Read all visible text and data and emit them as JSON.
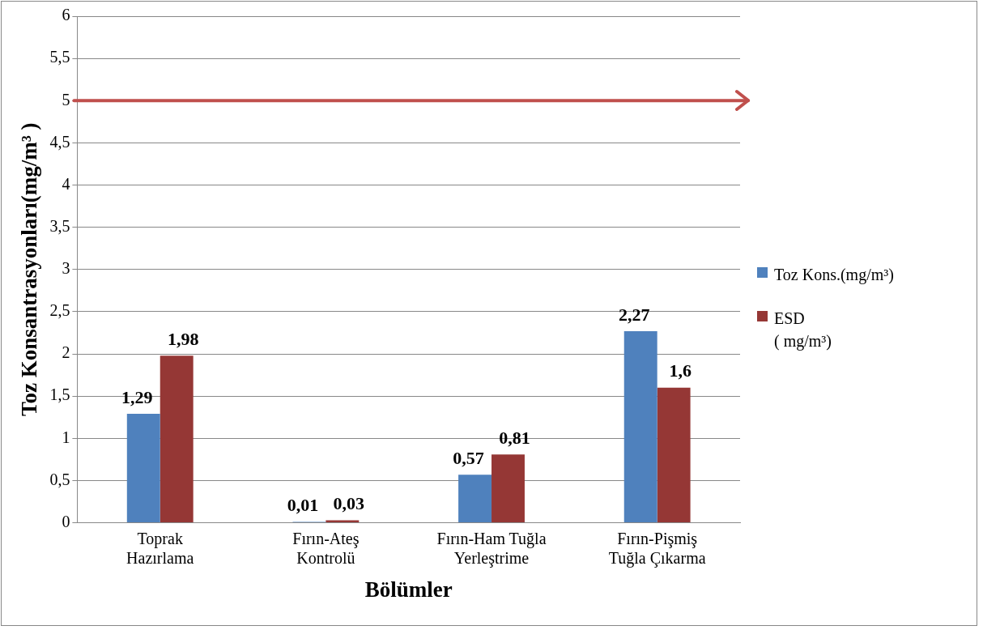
{
  "chart_data": {
    "type": "bar",
    "xlabel": "Bölümler",
    "ylabel": "Toz Konsantrasyonları(mg/m³ )",
    "categories": [
      "Toprak\nHazırlama",
      "Fırın-Ateş\nKontrolü",
      "Fırın-Ham Tuğla\nYerleştrime",
      "Fırın-Pişmiş\nTuğla Çıkarma"
    ],
    "series": [
      {
        "name": "Toz Kons.(mg/m³)",
        "color": "#4f81bd",
        "values": [
          1.29,
          0.01,
          0.57,
          2.27
        ],
        "value_labels": [
          "1,29",
          "0,01",
          "0,57",
          "2,27"
        ]
      },
      {
        "name": "ESD\n( mg/m³)",
        "color": "#953735",
        "values": [
          1.98,
          0.03,
          0.81,
          1.6
        ],
        "value_labels": [
          "1,98",
          "0,03",
          "0,81",
          "1,6"
        ]
      }
    ],
    "ylim": [
      0,
      6
    ],
    "yticks": [
      0,
      {
        "value": 0.5,
        "label": "0,5"
      },
      1,
      {
        "value": 1.5,
        "label": "1,5"
      },
      2,
      {
        "value": 2.5,
        "label": "2,5"
      },
      3,
      {
        "value": 3.5,
        "label": "3,5"
      },
      4,
      {
        "value": 4.5,
        "label": "4,5"
      },
      5,
      {
        "value": 5.5,
        "label": "5,5"
      },
      6
    ],
    "grid": "y",
    "legend": "right",
    "ref_lines": [
      {
        "axis": "y",
        "value": 5,
        "color": "#c0504d"
      }
    ]
  }
}
